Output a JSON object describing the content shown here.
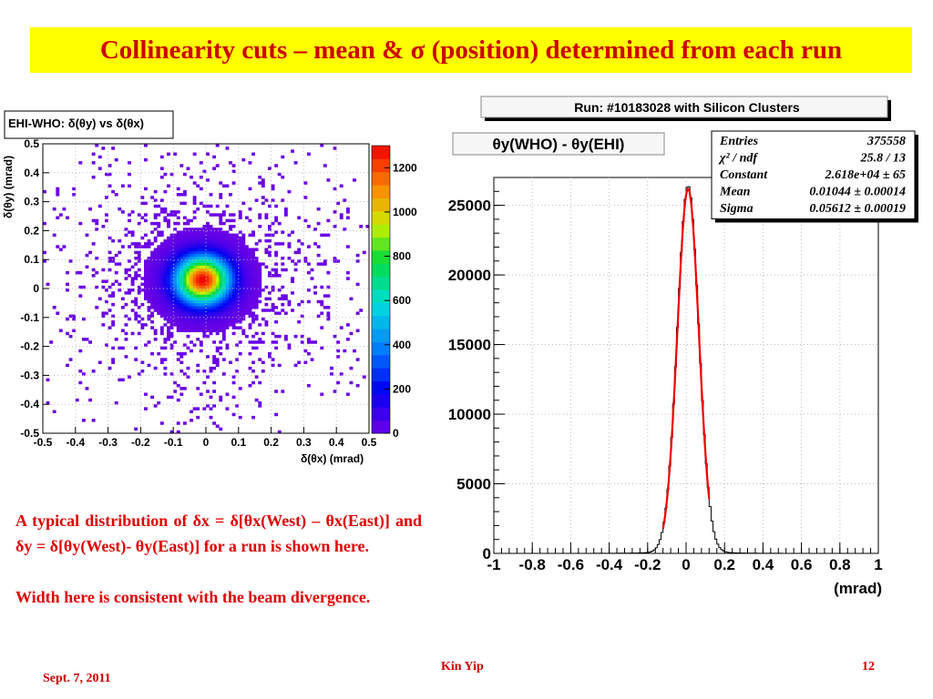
{
  "slide": {
    "title": "Collinearity cuts – mean & σ (position) determined from each run",
    "description_1": "A typical distribution of δx = δ[θx(West) – θx(East)] and δy = δ[θy(West)- θy(East)] for a run is shown here.",
    "description_2": "Width here is consistent with the beam divergence.",
    "footer_date": "Sept. 7, 2011",
    "footer_author": "Kin Yip",
    "footer_page": "12"
  },
  "chart_data": [
    {
      "type": "heatmap",
      "title": "EHI-WHO: δ(θy) vs δ(θx)",
      "xlabel": "δ(θx) (mrad)",
      "ylabel": "δ(θy) (mrad)",
      "xlim": [
        -0.5,
        0.5
      ],
      "ylim": [
        -0.5,
        0.5
      ],
      "x_ticks": [
        "-0.5",
        "-0.4",
        "-0.3",
        "-0.2",
        "-0.1",
        "0",
        "0.1",
        "0.2",
        "0.3",
        "0.4",
        "0.5"
      ],
      "y_ticks": [
        "0.5",
        "0.4",
        "0.3",
        "0.2",
        "0.1",
        "0",
        "-0.1",
        "-0.2",
        "-0.3",
        "-0.4",
        "-0.5"
      ],
      "z_ticks": [
        "1200",
        "1000",
        "800",
        "600",
        "400",
        "200",
        "0"
      ],
      "zlim": [
        0,
        1300
      ],
      "center": [
        -0.01,
        0.03
      ],
      "core_sigma": 0.056,
      "peak": 1300,
      "grid": true
    },
    {
      "type": "line",
      "run_title": "Run: #10183028 with Silicon Clusters",
      "title": "θy(WHO) - θy(EHI)",
      "xlabel": "(mrad)",
      "xlim": [
        -1,
        1
      ],
      "ylim": [
        0,
        27000
      ],
      "x_ticks": [
        "-1",
        "-0.8",
        "-0.6",
        "-0.4",
        "-0.2",
        "0",
        "0.2",
        "0.4",
        "0.6",
        "0.8",
        "1"
      ],
      "y_ticks": [
        "0",
        "5000",
        "10000",
        "15000",
        "20000",
        "25000"
      ],
      "grid": true,
      "series": [
        {
          "name": "histogram",
          "color": "#000000"
        },
        {
          "name": "gaussian fit",
          "color": "#ee0000",
          "fit_range": [
            -0.12,
            0.12
          ]
        }
      ],
      "stats": [
        {
          "label": "Entries",
          "value": "375558"
        },
        {
          "label": "χ² / ndf",
          "value": "25.8 / 13"
        },
        {
          "label": "Constant",
          "value": "2.618e+04 ± 65"
        },
        {
          "label": "Mean",
          "value": "0.01044 ± 0.00014"
        },
        {
          "label": "Sigma",
          "value": "0.05612 ± 0.00019"
        }
      ],
      "fit": {
        "constant": 26180,
        "mean": 0.01044,
        "sigma": 0.05612
      }
    }
  ]
}
